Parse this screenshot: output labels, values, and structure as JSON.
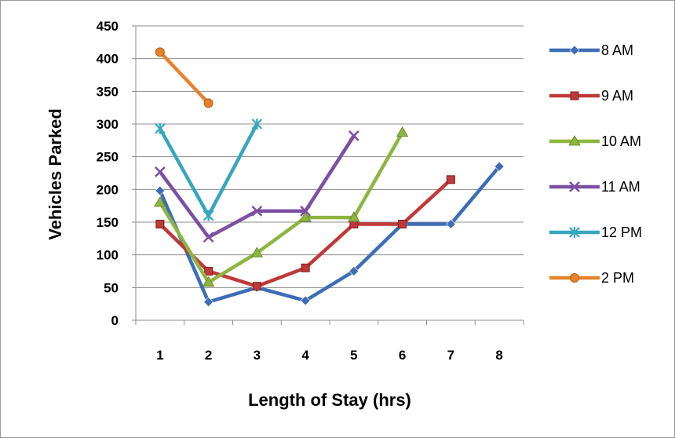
{
  "chart_data": {
    "type": "line",
    "title": "",
    "xlabel": "Length of Stay (hrs)",
    "ylabel": "Vehicles Parked",
    "categories": [
      "1",
      "2",
      "3",
      "4",
      "5",
      "6",
      "7",
      "8"
    ],
    "ylim": [
      0,
      450
    ],
    "yticks": [
      "0",
      "50",
      "100",
      "150",
      "200",
      "250",
      "300",
      "350",
      "400",
      "450"
    ],
    "grid": true,
    "legend_position": "right",
    "series": [
      {
        "name": "8 AM",
        "color": "#3d6db5",
        "marker": "diamond",
        "values": [
          198,
          28,
          50,
          30,
          75,
          147,
          147,
          235
        ]
      },
      {
        "name": "9 AM",
        "color": "#c0393a",
        "marker": "square",
        "values": [
          147,
          75,
          52,
          80,
          147,
          147,
          215,
          null
        ]
      },
      {
        "name": "10 AM",
        "color": "#8db540",
        "marker": "triangle",
        "values": [
          180,
          58,
          103,
          157,
          157,
          287,
          null,
          null
        ]
      },
      {
        "name": "11 AM",
        "color": "#7b4fa2",
        "marker": "x",
        "values": [
          227,
          127,
          167,
          167,
          282,
          null,
          null,
          null
        ]
      },
      {
        "name": "12 PM",
        "color": "#37a6bd",
        "marker": "star",
        "values": [
          293,
          160,
          300,
          null,
          null,
          null,
          null,
          null
        ]
      },
      {
        "name": "2 PM",
        "color": "#e7822c",
        "marker": "circle",
        "values": [
          410,
          332,
          null,
          null,
          null,
          null,
          null,
          null
        ]
      }
    ]
  }
}
